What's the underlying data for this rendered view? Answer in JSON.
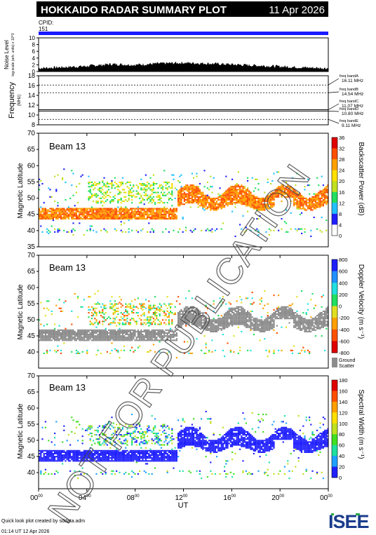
{
  "header": {
    "title": "HOKKAIDO RADAR SUMMARY PLOT",
    "date": "11 Apr 2026"
  },
  "cpid": {
    "label": "CPID:",
    "value": "151"
  },
  "watermark": "NOT FOR PUBLICATION",
  "footer": {
    "credit": "Quick look plot created by sddata.adm",
    "timestamp": "01:14 UT 12 Apr 2026",
    "logo": "ISEE"
  },
  "colors": {
    "cpid_bar": "#1a1aff",
    "noise": "#000000",
    "ground_scatter": "#8c8c8c",
    "power_scale": [
      "#ffffff",
      "#2020ff",
      "#20c0ff",
      "#20e060",
      "#c0e020",
      "#ffe000",
      "#ffa000",
      "#ff5000",
      "#e00000"
    ],
    "velocity_scale": [
      "#2020ff",
      "#2090ff",
      "#20e0e0",
      "#20e060",
      "#e0e020",
      "#ffa000",
      "#ff5000",
      "#e00000"
    ],
    "width_scale": [
      "#2020ff",
      "#20a0ff",
      "#20e0a0",
      "#40e020",
      "#c0e020",
      "#ffe000",
      "#ffa000",
      "#ff5000",
      "#e00000"
    ]
  },
  "time_axis": {
    "label": "UT",
    "ticks": [
      {
        "h": "00",
        "m": "00"
      },
      {
        "h": "04",
        "m": "00"
      },
      {
        "h": "08",
        "m": "00"
      },
      {
        "h": "12",
        "m": "00"
      },
      {
        "h": "16",
        "m": "00"
      },
      {
        "h": "20",
        "m": "00"
      },
      {
        "h": "00",
        "m": "00"
      }
    ]
  },
  "chart_data": [
    {
      "type": "area",
      "id": "noise",
      "ylabel": "Noise Level",
      "yunit": "log-scale (arb. units) x 10^3",
      "ylim": [
        0,
        10
      ],
      "yticks": [
        0,
        2,
        4,
        6,
        8,
        10
      ],
      "series": [
        {
          "x_hours": [
            0,
            2,
            4,
            6,
            8,
            10,
            12,
            14,
            16,
            18,
            20,
            22,
            24
          ],
          "values": [
            1.0,
            1.3,
            1.6,
            2.2,
            2.0,
            2.4,
            2.6,
            2.4,
            2.1,
            1.8,
            1.5,
            1.2,
            1.0
          ]
        }
      ]
    },
    {
      "type": "line",
      "id": "frequency",
      "ylabel": "Frequency",
      "yunit": "(MHz)",
      "ylim": [
        8,
        18
      ],
      "yticks": [
        8,
        10,
        12,
        14,
        16,
        18
      ],
      "bands": [
        {
          "label": "freq bandA",
          "mhz": 16.11,
          "text": "16.11 MHz"
        },
        {
          "label": "freq bandB",
          "mhz": 14.54,
          "text": "14.54 MHz"
        },
        {
          "label": "freq bandC",
          "mhz": 11.07,
          "text": "11.07 MHz"
        },
        {
          "label": "freq bandD",
          "mhz": 10.8,
          "text": "10.80 MHz"
        },
        {
          "label": "freq bandE",
          "mhz": 9.11,
          "text": "9.11 MHz"
        }
      ]
    },
    {
      "type": "heatmap",
      "id": "power",
      "beam": "Beam 13",
      "ylabel": "Magnetic Latitude",
      "ylim": [
        35,
        70
      ],
      "yticks": [
        35,
        40,
        45,
        50,
        55,
        60,
        65,
        70
      ],
      "colorbar": {
        "label": "Backscatter Power (dB)",
        "ticks": [
          0,
          4,
          8,
          12,
          16,
          20,
          24,
          28,
          32,
          36
        ]
      }
    },
    {
      "type": "heatmap",
      "id": "velocity",
      "beam": "Beam 13",
      "ylabel": "Magnetic Latitude",
      "ylim": [
        35,
        70
      ],
      "yticks": [
        40,
        45,
        50,
        55,
        60,
        65,
        70
      ],
      "colorbar": {
        "label": "Doppler Velocity (m s⁻¹)",
        "ticks": [
          800,
          600,
          400,
          200,
          0,
          -200,
          -400,
          -600,
          -800
        ],
        "ground_scatter_label": [
          "Ground",
          "Scatter"
        ]
      }
    },
    {
      "type": "heatmap",
      "id": "width",
      "beam": "Beam 13",
      "ylabel": "Magnetic Latitude",
      "ylim": [
        35,
        70
      ],
      "yticks": [
        40,
        45,
        50,
        55,
        60,
        65,
        70
      ],
      "colorbar": {
        "label": "Spectral Width (m s⁻¹)",
        "ticks": [
          0,
          20,
          40,
          60,
          80,
          100,
          120,
          140,
          160,
          180
        ]
      }
    }
  ],
  "scatter_regions": {
    "main_band_lat": [
      43,
      47
    ],
    "upper_band_lat": [
      48,
      55
    ],
    "outer_echo_lat": [
      38,
      58
    ],
    "onset_hours": 11.5,
    "end_hours": 24
  }
}
